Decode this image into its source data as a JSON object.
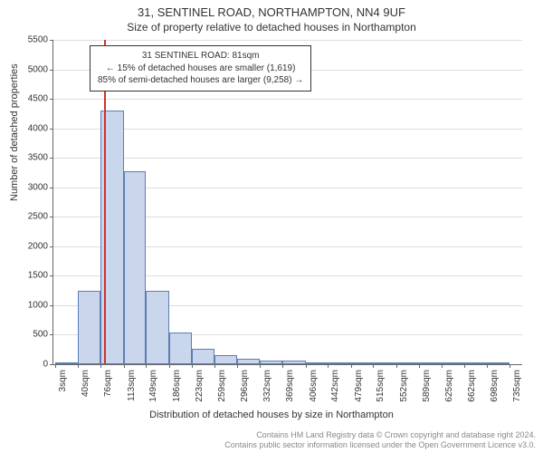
{
  "title": "31, SENTINEL ROAD, NORTHAMPTON, NN4 9UF",
  "subtitle": "Size of property relative to detached houses in Northampton",
  "ylabel": "Number of detached properties",
  "xlabel": "Distribution of detached houses by size in Northampton",
  "chart": {
    "type": "histogram",
    "ylim": [
      0,
      5500
    ],
    "ytick_step": 500,
    "yticks": [
      0,
      500,
      1000,
      1500,
      2000,
      2500,
      3000,
      3500,
      4000,
      4500,
      5000,
      5500
    ],
    "x_range": [
      0,
      755
    ],
    "x_tick_positions": [
      3,
      40,
      76,
      113,
      149,
      186,
      223,
      259,
      296,
      332,
      369,
      406,
      442,
      479,
      515,
      552,
      589,
      625,
      662,
      698,
      735
    ],
    "x_tick_labels": [
      "3sqm",
      "40sqm",
      "76sqm",
      "113sqm",
      "149sqm",
      "186sqm",
      "223sqm",
      "259sqm",
      "296sqm",
      "332sqm",
      "369sqm",
      "406sqm",
      "442sqm",
      "479sqm",
      "515sqm",
      "552sqm",
      "589sqm",
      "625sqm",
      "662sqm",
      "698sqm",
      "735sqm"
    ],
    "bars": [
      {
        "x_start": 3,
        "x_end": 40,
        "value": 30
      },
      {
        "x_start": 40,
        "x_end": 76,
        "value": 1250
      },
      {
        "x_start": 76,
        "x_end": 113,
        "value": 4300
      },
      {
        "x_start": 113,
        "x_end": 149,
        "value": 3270
      },
      {
        "x_start": 149,
        "x_end": 186,
        "value": 1240
      },
      {
        "x_start": 186,
        "x_end": 223,
        "value": 540
      },
      {
        "x_start": 223,
        "x_end": 259,
        "value": 260
      },
      {
        "x_start": 259,
        "x_end": 296,
        "value": 150
      },
      {
        "x_start": 296,
        "x_end": 332,
        "value": 90
      },
      {
        "x_start": 332,
        "x_end": 369,
        "value": 60
      },
      {
        "x_start": 369,
        "x_end": 406,
        "value": 55
      },
      {
        "x_start": 406,
        "x_end": 442,
        "value": 30
      },
      {
        "x_start": 442,
        "x_end": 479,
        "value": 18
      },
      {
        "x_start": 479,
        "x_end": 515,
        "value": 12
      },
      {
        "x_start": 515,
        "x_end": 552,
        "value": 8
      },
      {
        "x_start": 552,
        "x_end": 589,
        "value": 6
      },
      {
        "x_start": 589,
        "x_end": 625,
        "value": 5
      },
      {
        "x_start": 625,
        "x_end": 662,
        "value": 4
      },
      {
        "x_start": 662,
        "x_end": 698,
        "value": 3
      },
      {
        "x_start": 698,
        "x_end": 735,
        "value": 2
      }
    ],
    "bar_fill": "#c9d6ec",
    "bar_stroke": "#5b7fb5",
    "background_color": "#ffffff",
    "grid_color": "#dddddd",
    "reference_line": {
      "x": 81,
      "color": "#cc3333"
    }
  },
  "annotation": {
    "line1": "31 SENTINEL ROAD: 81sqm",
    "line2": "← 15% of detached houses are smaller (1,619)",
    "line3": "85% of semi-detached houses are larger (9,258) →"
  },
  "footer": {
    "line1": "Contains HM Land Registry data © Crown copyright and database right 2024.",
    "line2": "Contains public sector information licensed under the Open Government Licence v3.0."
  }
}
